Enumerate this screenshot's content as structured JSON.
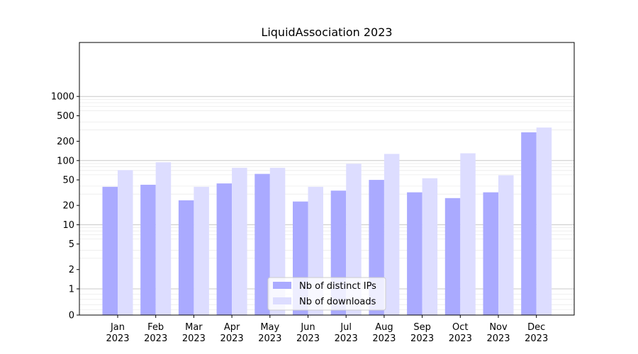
{
  "chart_data": {
    "type": "bar",
    "title": "LiquidAssociation 2023",
    "xlabel": "",
    "ylabel": "",
    "yscale": "symlog",
    "ylim": [
      0,
      1300
    ],
    "yticks": [
      0,
      1,
      2,
      5,
      10,
      20,
      50,
      100,
      200,
      500,
      1000
    ],
    "grid": "horizontal",
    "legend_position": "bottom-center",
    "categories": [
      [
        "Jan",
        "2023"
      ],
      [
        "Feb",
        "2023"
      ],
      [
        "Mar",
        "2023"
      ],
      [
        "Apr",
        "2023"
      ],
      [
        "May",
        "2023"
      ],
      [
        "Jun",
        "2023"
      ],
      [
        "Jul",
        "2023"
      ],
      [
        "Aug",
        "2023"
      ],
      [
        "Sep",
        "2023"
      ],
      [
        "Oct",
        "2023"
      ],
      [
        "Nov",
        "2023"
      ],
      [
        "Dec",
        "2023"
      ]
    ],
    "series": [
      {
        "name": "Nb of distinct IPs",
        "color": "#aaaaff",
        "values": [
          39,
          42,
          24,
          44,
          62,
          23,
          34,
          50,
          32,
          26,
          32,
          276
        ]
      },
      {
        "name": "Nb of downloads",
        "color": "#ddddff",
        "values": [
          71,
          94,
          39,
          77,
          77,
          39,
          89,
          127,
          53,
          130,
          59,
          327
        ]
      }
    ]
  }
}
